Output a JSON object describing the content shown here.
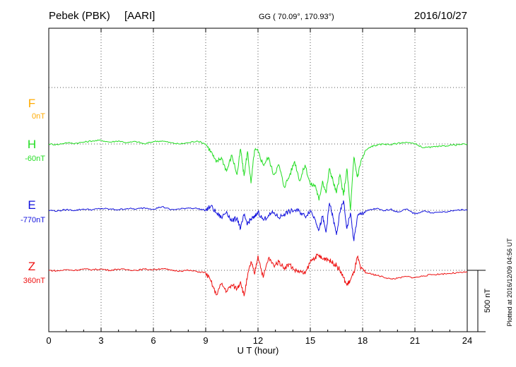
{
  "header": {
    "station": "Pebek (PBK)",
    "code": "[AARI]",
    "coords": "GG ( 70.09°, 170.93°)",
    "date": "2016/10/27"
  },
  "side_note": "Plotted at 2016/12/09 04:56 UT",
  "scale_label": "500 nT",
  "colors": {
    "F": "#ffaa00",
    "H": "#22dd22",
    "E": "#1010dd",
    "Z": "#ee1111"
  },
  "chart_data": {
    "type": "line",
    "xlabel": "U T (hour)",
    "xlim": [
      0,
      24
    ],
    "x_ticks": [
      "0",
      "3",
      "6",
      "9",
      "12",
      "15",
      "18",
      "21",
      "24"
    ],
    "scale_bar_nT": 500,
    "series": [
      {
        "key": "F",
        "name": "F",
        "baseline": "0nT",
        "x": [],
        "values": []
      },
      {
        "key": "H",
        "name": "H",
        "baseline": "-60nT",
        "x": [
          0,
          0.5,
          1,
          1.5,
          2,
          2.5,
          3,
          3.5,
          4,
          4.5,
          5,
          5.5,
          6,
          6.5,
          7,
          7.5,
          8,
          8.5,
          9,
          9.3,
          9.6,
          9.9,
          10.2,
          10.5,
          10.8,
          11,
          11.2,
          11.4,
          11.6,
          11.8,
          12,
          12.3,
          12.6,
          12.9,
          13.2,
          13.5,
          13.8,
          14.1,
          14.4,
          14.7,
          15,
          15.3,
          15.5,
          15.7,
          15.9,
          16.1,
          16.3,
          16.5,
          16.7,
          16.9,
          17.1,
          17.3,
          17.5,
          17.7,
          17.9,
          18.2,
          18.5,
          18.8,
          19.2,
          19.6,
          20,
          20.5,
          21,
          21.5,
          22,
          22.5,
          23,
          23.5,
          24
        ],
        "values": [
          0,
          -5,
          10,
          5,
          15,
          25,
          30,
          15,
          25,
          10,
          20,
          0,
          20,
          25,
          10,
          0,
          10,
          25,
          0,
          -60,
          -150,
          -110,
          -220,
          -90,
          -250,
          -40,
          -260,
          -60,
          -320,
          -50,
          -60,
          -170,
          -110,
          -250,
          -170,
          -350,
          -260,
          -140,
          -300,
          -170,
          -330,
          -340,
          -460,
          -300,
          -400,
          -200,
          -300,
          -400,
          -250,
          -420,
          -200,
          -540,
          -110,
          -270,
          -140,
          -50,
          -20,
          -10,
          0,
          -5,
          5,
          15,
          0,
          -30,
          -25,
          -20,
          -10,
          -5,
          0
        ]
      },
      {
        "key": "E",
        "name": "E",
        "baseline": "-770nT",
        "x": [
          0,
          0.5,
          1,
          1.5,
          2,
          2.5,
          3,
          3.5,
          4,
          4.5,
          5,
          5.5,
          6,
          6.5,
          7,
          7.5,
          8,
          8.5,
          9,
          9.3,
          9.6,
          9.9,
          10.2,
          10.5,
          10.8,
          11,
          11.2,
          11.4,
          11.6,
          11.8,
          12,
          12.3,
          12.6,
          12.9,
          13.2,
          13.5,
          13.8,
          14.1,
          14.4,
          14.7,
          15,
          15.3,
          15.5,
          15.7,
          15.9,
          16.1,
          16.3,
          16.5,
          16.7,
          16.9,
          17.1,
          17.3,
          17.5,
          17.7,
          17.9,
          18.2,
          18.5,
          18.8,
          19.2,
          19.6,
          20,
          20.5,
          21,
          21.5,
          22,
          22.5,
          23,
          23.5,
          24
        ],
        "values": [
          0,
          -5,
          5,
          0,
          10,
          5,
          15,
          10,
          5,
          15,
          10,
          20,
          10,
          30,
          5,
          10,
          20,
          15,
          0,
          35,
          -20,
          -60,
          -10,
          -90,
          -60,
          -150,
          -40,
          -110,
          -70,
          -60,
          -10,
          -80,
          -40,
          -20,
          -60,
          -30,
          -10,
          0,
          -10,
          -50,
          0,
          -80,
          -160,
          -50,
          -180,
          60,
          -60,
          -200,
          -20,
          80,
          -150,
          -20,
          -250,
          -50,
          -30,
          -5,
          5,
          15,
          -5,
          10,
          -15,
          10,
          -30,
          -5,
          -20,
          -15,
          -10,
          5,
          0
        ]
      },
      {
        "key": "Z",
        "name": "Z",
        "baseline": "360nT",
        "x": [
          0,
          0.5,
          1,
          1.5,
          2,
          2.5,
          3,
          3.5,
          4,
          4.5,
          5,
          5.5,
          6,
          6.5,
          7,
          7.5,
          8,
          8.5,
          9,
          9.3,
          9.6,
          9.9,
          10.2,
          10.5,
          10.8,
          11,
          11.2,
          11.4,
          11.6,
          11.8,
          12,
          12.3,
          12.6,
          12.9,
          13.2,
          13.5,
          13.8,
          14.1,
          14.4,
          14.7,
          15,
          15.3,
          15.5,
          15.7,
          15.9,
          16.1,
          16.3,
          16.5,
          16.7,
          16.9,
          17.1,
          17.3,
          17.5,
          17.7,
          17.9,
          18.2,
          18.5,
          18.8,
          19.2,
          19.6,
          20,
          20.5,
          21,
          21.5,
          22,
          22.5,
          23,
          23.5,
          24
        ],
        "values": [
          0,
          -5,
          5,
          0,
          10,
          5,
          10,
          0,
          10,
          5,
          0,
          10,
          5,
          15,
          0,
          -5,
          0,
          -10,
          -20,
          -90,
          -200,
          -110,
          -170,
          -120,
          -150,
          -90,
          -210,
          -50,
          70,
          -30,
          120,
          -60,
          100,
          40,
          70,
          20,
          50,
          0,
          -10,
          -30,
          70,
          110,
          120,
          90,
          100,
          80,
          60,
          40,
          0,
          -60,
          -120,
          -80,
          -20,
          110,
          10,
          -20,
          -30,
          -40,
          -55,
          -70,
          -65,
          -50,
          -60,
          -45,
          -35,
          -30,
          -25,
          -20,
          -15
        ]
      }
    ]
  }
}
